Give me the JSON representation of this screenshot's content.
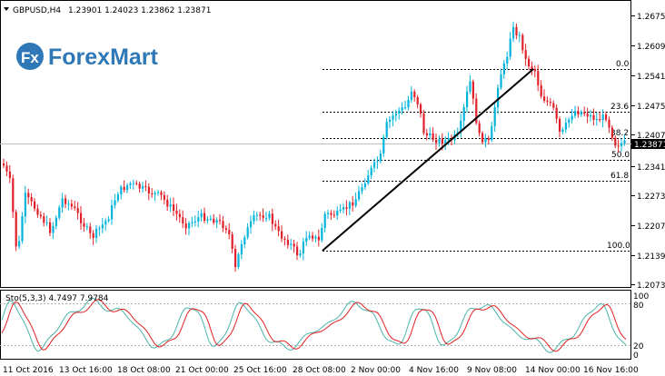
{
  "header": {
    "symbol": "GBPUSD,H4",
    "ohlc": "1.23901 1.24023 1.23862 1.23871"
  },
  "logo": {
    "mark": "Fx",
    "name": "ForexMart"
  },
  "price_axis": {
    "labels": [
      "1.26750",
      "1.26090",
      "1.25410",
      "1.24750",
      "1.24070",
      "1.23410",
      "1.22730",
      "1.22070",
      "1.21390",
      "1.20730"
    ],
    "current_price": "1.23871"
  },
  "fib_levels": [
    "0.0",
    "23.6",
    "38.2",
    "50.0",
    "61.8",
    "100.0"
  ],
  "stochastic": {
    "title": "Sto(5,3,3) 4.7497 7.9784",
    "axis_labels": [
      "100",
      "80",
      "20",
      "0"
    ]
  },
  "time_axis": {
    "labels": [
      "11 Oct 2016",
      "13 Oct 16:00",
      "18 Oct 08:00",
      "21 Oct 00:00",
      "25 Oct 16:00",
      "28 Oct 08:00",
      "2 Nov 00:00",
      "4 Nov 16:00",
      "9 Nov 08:00",
      "14 Nov 00:00",
      "16 Nov 16:00"
    ]
  },
  "colors": {
    "bull": "#00b4dc",
    "bear": "#e0202a",
    "trendline": "#000000",
    "logo_blue": "#2f78b7",
    "stoch_main": "#4bb4aa",
    "stoch_signal": "#e02020"
  }
}
